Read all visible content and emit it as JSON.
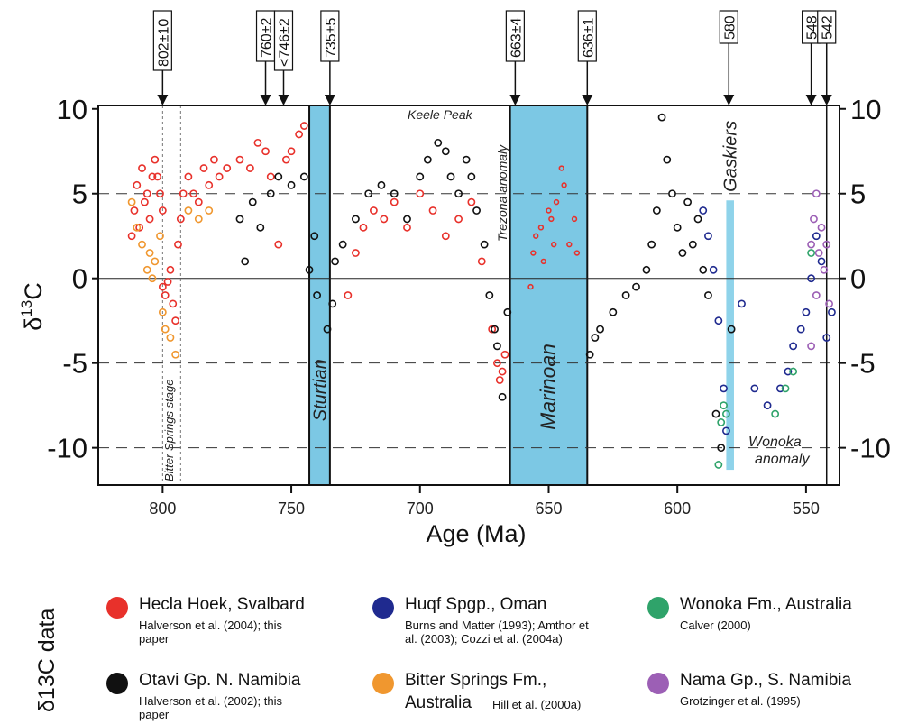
{
  "chart_data": {
    "type": "scatter",
    "xlabel": "Age (Ma)",
    "ylabel_main": "δ",
    "ylabel_sup": "13",
    "ylabel_tail": "C",
    "xlim": [
      825,
      537
    ],
    "ylim": [
      -12.2,
      10.2
    ],
    "x_reversed": true,
    "xticks": [
      800,
      750,
      700,
      650,
      600,
      550
    ],
    "yticks_left": [
      "10",
      "5",
      "0",
      "-5",
      "-10"
    ],
    "yticks_right": [
      "10",
      "5",
      "0",
      "-5",
      "-10"
    ],
    "ytick_values": [
      10,
      5,
      0,
      -5,
      -10
    ],
    "dashed_gridlines": [
      5,
      -5,
      -10
    ],
    "solid_zero_line": true,
    "age_markers": [
      {
        "label": "802±10",
        "age": 800
      },
      {
        "label": "760±2",
        "age": 760
      },
      {
        "label": "<746±2",
        "age": 753
      },
      {
        "label": "735±5",
        "age": 735
      },
      {
        "label": "663±4",
        "age": 663
      },
      {
        "label": "636±1",
        "age": 635
      },
      {
        "label": "580",
        "age": 580
      },
      {
        "label": "548",
        "age": 548
      },
      {
        "label": "542",
        "age": 542
      }
    ],
    "glaciations": [
      {
        "label": "Sturtian",
        "from": 743,
        "to": 735,
        "color": "#7cc8e4"
      },
      {
        "label": "Marinoan",
        "from": 665,
        "to": 635,
        "color": "#7cc8e4"
      },
      {
        "label": "Gaskiers",
        "from": 581,
        "to": 578,
        "color": "#8fd3ea"
      }
    ],
    "annotations": [
      {
        "text": "Keele Peak"
      },
      {
        "text": "Trezona anomaly"
      },
      {
        "text": "Bitter Springs stage"
      },
      {
        "text": "Wonoka"
      },
      {
        "text": "anomaly"
      }
    ],
    "series": [
      {
        "name": "Hecla Hoek, Svalbard",
        "color": "#e8312b",
        "points": [
          [
            812,
            2.5
          ],
          [
            811,
            4.0
          ],
          [
            810,
            5.5
          ],
          [
            809,
            3.0
          ],
          [
            808,
            6.5
          ],
          [
            807,
            4.5
          ],
          [
            806,
            5.0
          ],
          [
            805,
            3.5
          ],
          [
            804,
            6.0
          ],
          [
            803,
            7.0
          ],
          [
            802,
            6.0
          ],
          [
            801,
            5.0
          ],
          [
            800,
            4.0
          ],
          [
            800,
            -0.5
          ],
          [
            799,
            -1.0
          ],
          [
            798,
            -0.2
          ],
          [
            797,
            0.5
          ],
          [
            796,
            -1.5
          ],
          [
            795,
            -2.5
          ],
          [
            794,
            2.0
          ],
          [
            793,
            3.5
          ],
          [
            792,
            5.0
          ],
          [
            790,
            6.0
          ],
          [
            788,
            5.0
          ],
          [
            786,
            4.5
          ],
          [
            784,
            6.5
          ],
          [
            782,
            5.5
          ],
          [
            780,
            7.0
          ],
          [
            778,
            6.0
          ],
          [
            775,
            6.5
          ],
          [
            770,
            7.0
          ],
          [
            766,
            6.5
          ],
          [
            763,
            8.0
          ],
          [
            760,
            7.5
          ],
          [
            758,
            6.0
          ],
          [
            755,
            2.0
          ],
          [
            752,
            7.0
          ],
          [
            750,
            7.5
          ],
          [
            747,
            8.5
          ],
          [
            745,
            9.0
          ],
          [
            728,
            -1.0
          ],
          [
            725,
            1.5
          ],
          [
            722,
            3.0
          ],
          [
            718,
            4.0
          ],
          [
            714,
            3.5
          ],
          [
            710,
            4.5
          ],
          [
            705,
            3.0
          ],
          [
            700,
            5.0
          ],
          [
            695,
            4.0
          ],
          [
            690,
            2.5
          ],
          [
            685,
            3.5
          ],
          [
            680,
            4.5
          ],
          [
            676,
            1.0
          ],
          [
            672,
            -3.0
          ],
          [
            670,
            -5.0
          ],
          [
            669,
            -6.0
          ],
          [
            668,
            -5.5
          ],
          [
            667,
            -4.5
          ]
        ]
      },
      {
        "name": "Hecla Hoek, Svalbard (post-Marinoan)",
        "color": "#e8312b",
        "hollow_small": true,
        "points": [
          [
            657,
            -0.5
          ],
          [
            656,
            1.5
          ],
          [
            655,
            2.5
          ],
          [
            653,
            3.0
          ],
          [
            652,
            1.0
          ],
          [
            650,
            4.0
          ],
          [
            649,
            3.5
          ],
          [
            648,
            2.0
          ],
          [
            647,
            4.5
          ],
          [
            645,
            6.5
          ],
          [
            644,
            5.5
          ],
          [
            642,
            2.0
          ],
          [
            640,
            3.5
          ],
          [
            639,
            1.5
          ]
        ]
      },
      {
        "name": "Otavi Gp. N. Namibia",
        "color": "#111111",
        "points": [
          [
            770,
            3.5
          ],
          [
            768,
            1.0
          ],
          [
            765,
            4.5
          ],
          [
            762,
            3.0
          ],
          [
            758,
            5.0
          ],
          [
            755,
            6.0
          ],
          [
            750,
            5.5
          ],
          [
            745,
            6.0
          ],
          [
            743,
            0.5
          ],
          [
            741,
            2.5
          ],
          [
            740,
            -1.0
          ],
          [
            736,
            -3.0
          ],
          [
            734,
            -1.5
          ],
          [
            733,
            1.0
          ],
          [
            730,
            2.0
          ],
          [
            725,
            3.5
          ],
          [
            720,
            5.0
          ],
          [
            715,
            5.5
          ],
          [
            710,
            5.0
          ],
          [
            705,
            3.5
          ],
          [
            700,
            6.0
          ],
          [
            697,
            7.0
          ],
          [
            693,
            8.0
          ],
          [
            690,
            7.5
          ],
          [
            688,
            6.0
          ],
          [
            685,
            5.0
          ],
          [
            682,
            7.0
          ],
          [
            680,
            6.0
          ],
          [
            678,
            4.0
          ],
          [
            675,
            2.0
          ],
          [
            673,
            -1.0
          ],
          [
            671,
            -3.0
          ],
          [
            670,
            -4.0
          ],
          [
            668,
            -7.0
          ],
          [
            666,
            -2.0
          ],
          [
            634,
            -4.5
          ],
          [
            632,
            -3.5
          ],
          [
            630,
            -3.0
          ],
          [
            625,
            -2.0
          ],
          [
            620,
            -1.0
          ],
          [
            616,
            -0.5
          ],
          [
            612,
            0.5
          ],
          [
            610,
            2.0
          ],
          [
            608,
            4.0
          ],
          [
            606,
            9.5
          ],
          [
            604,
            7.0
          ],
          [
            602,
            5.0
          ],
          [
            600,
            3.0
          ],
          [
            598,
            1.5
          ],
          [
            596,
            4.5
          ],
          [
            594,
            2.0
          ],
          [
            592,
            3.5
          ],
          [
            590,
            0.5
          ],
          [
            588,
            -1.0
          ],
          [
            585,
            -8.0
          ],
          [
            583,
            -10.0
          ],
          [
            579,
            -3.0
          ]
        ]
      },
      {
        "name": "Huqf Spgp., Oman",
        "color": "#1f2a8f",
        "points": [
          [
            590,
            4.0
          ],
          [
            588,
            2.5
          ],
          [
            586,
            0.5
          ],
          [
            584,
            -2.5
          ],
          [
            582,
            -6.5
          ],
          [
            581,
            -9.0
          ],
          [
            575,
            -1.5
          ],
          [
            570,
            -6.5
          ],
          [
            565,
            -7.5
          ],
          [
            560,
            -6.5
          ],
          [
            557,
            -5.5
          ],
          [
            555,
            -4.0
          ],
          [
            552,
            -3.0
          ],
          [
            550,
            -2.0
          ],
          [
            548,
            0.0
          ],
          [
            546,
            2.5
          ],
          [
            544,
            1.0
          ],
          [
            542,
            -3.5
          ],
          [
            540,
            -2.0
          ]
        ]
      },
      {
        "name": "Bitter Springs Fm., Australia",
        "color": "#f0972f",
        "points": [
          [
            812,
            4.5
          ],
          [
            810,
            3.0
          ],
          [
            808,
            2.0
          ],
          [
            806,
            0.5
          ],
          [
            805,
            1.5
          ],
          [
            804,
            0.0
          ],
          [
            803,
            1.0
          ],
          [
            801,
            2.5
          ],
          [
            800,
            -2.0
          ],
          [
            799,
            -3.0
          ],
          [
            797,
            -3.5
          ],
          [
            795,
            -4.5
          ],
          [
            790,
            4.0
          ],
          [
            786,
            3.5
          ],
          [
            782,
            4.0
          ]
        ]
      },
      {
        "name": "Wonoka Fm., Australia",
        "color": "#2fa36a",
        "points": [
          [
            584,
            -11.0
          ],
          [
            583,
            -8.5
          ],
          [
            582,
            -7.5
          ],
          [
            581,
            -8.0
          ],
          [
            562,
            -8.0
          ],
          [
            558,
            -6.5
          ],
          [
            555,
            -5.5
          ],
          [
            548,
            1.5
          ]
        ]
      },
      {
        "name": "Nama Gp., S. Namibia",
        "color": "#9c5fb5",
        "points": [
          [
            548,
            2.0
          ],
          [
            547,
            3.5
          ],
          [
            546,
            5.0
          ],
          [
            545,
            1.5
          ],
          [
            544,
            3.0
          ],
          [
            543,
            0.5
          ],
          [
            542,
            2.0
          ],
          [
            541,
            -1.5
          ],
          [
            548,
            -4.0
          ],
          [
            546,
            -1.0
          ]
        ]
      }
    ]
  },
  "legend": {
    "title": "δ13C data",
    "items": [
      {
        "name": "Hecla Hoek, Svalbard",
        "cite": "Halverson et al. (2004); this paper",
        "color": "#e8312b"
      },
      {
        "name": "Otavi Gp. N. Namibia",
        "cite": "Halverson et al. (2002); this paper",
        "color": "#111111"
      },
      {
        "name": "Huqf Spgp., Oman",
        "cite": "Burns and Matter (1993); Amthor et al. (2003); Cozzi et al. (2004a)",
        "color": "#1f2a8f"
      },
      {
        "name": "Bitter Springs Fm.,",
        "name2": "Australia",
        "cite": "Hill et al. (2000a)",
        "color": "#f0972f"
      },
      {
        "name": "Wonoka Fm., Australia",
        "cite": "Calver (2000)",
        "color": "#2fa36a"
      },
      {
        "name": "Nama Gp., S. Namibia",
        "cite": "Grotzinger et al. (1995)",
        "color": "#9c5fb5"
      }
    ]
  }
}
